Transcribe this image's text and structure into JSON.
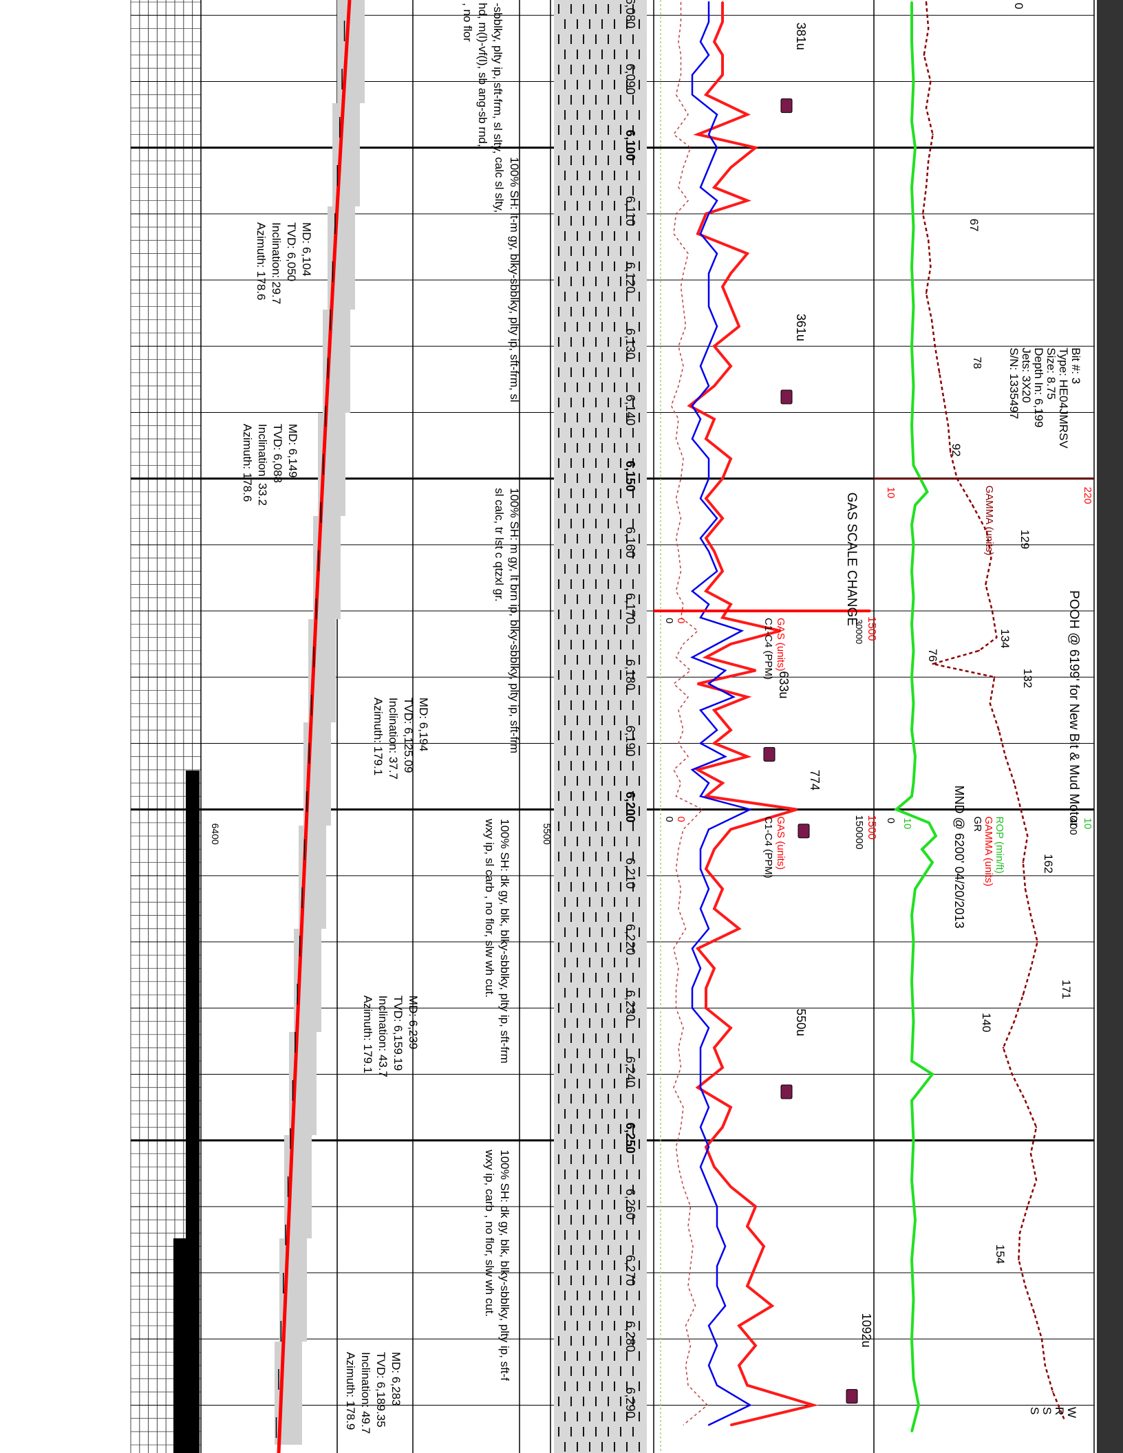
{
  "chart_data": {
    "type": "line",
    "title": "",
    "orientation": "depth increases left to right; page is a rotated mud log strip",
    "depth_axis": {
      "range": [
        6077,
        6294
      ],
      "tick_labels": [
        "6,080",
        "6,090",
        "6,100",
        "6,110",
        "6,120",
        "6,130",
        "6,140",
        "6,150",
        "6,160",
        "6,170",
        "6,180",
        "6,190",
        "6,200",
        "6,210",
        "6,220",
        "6,230",
        "6,240",
        "6,250",
        "6,260",
        "6,270",
        "6,280",
        "6,290"
      ],
      "major_every": 50,
      "grid": true
    },
    "series": [
      {
        "name": "GAS (units)",
        "color": "#ff1a1a",
        "x": [
          6078,
          6081,
          6084,
          6086,
          6089,
          6092,
          6095,
          6098,
          6100,
          6103,
          6106,
          6108,
          6110,
          6113,
          6116,
          6119,
          6121,
          6124,
          6127,
          6130,
          6133,
          6136,
          6139,
          6141,
          6144,
          6147,
          6150,
          6153,
          6156,
          6159,
          6161,
          6164,
          6167,
          6169,
          6171,
          6173,
          6175,
          6177,
          6179,
          6181,
          6183,
          6185,
          6188,
          6190,
          6192,
          6194,
          6196,
          6198,
          6200,
          6203,
          6206,
          6209,
          6212,
          6215,
          6218,
          6221,
          6224,
          6227,
          6230,
          6233,
          6236,
          6239,
          6242,
          6245,
          6248,
          6251,
          6254,
          6257,
          6260,
          6263,
          6266,
          6269,
          6272,
          6275,
          6278,
          6281,
          6284,
          6287,
          6290,
          6293
        ],
        "values": [
          5,
          5,
          4,
          5,
          5,
          3,
          8,
          2,
          9,
          6,
          4,
          8,
          3,
          2,
          8,
          6,
          5,
          6,
          7,
          4,
          6,
          4,
          1,
          4,
          3,
          6,
          5,
          3,
          5,
          3,
          4,
          5,
          3,
          6,
          5,
          12,
          6,
          3,
          9,
          2,
          8,
          4,
          6,
          4,
          8,
          2,
          5,
          3,
          14,
          6,
          4,
          3,
          5,
          4,
          7,
          2,
          4,
          3,
          3,
          6,
          4,
          5,
          2,
          6,
          5,
          3,
          4,
          6,
          9,
          8,
          10,
          9,
          8,
          11,
          7,
          9,
          7,
          8,
          16,
          6
        ]
      },
      {
        "name": "C1-C4 (PPM)",
        "color": "#0000ee",
        "x": [
          6078,
          6081,
          6084,
          6086,
          6089,
          6092,
          6095,
          6098,
          6100,
          6103,
          6106,
          6108,
          6110,
          6113,
          6116,
          6119,
          6121,
          6124,
          6127,
          6130,
          6133,
          6136,
          6139,
          6141,
          6144,
          6147,
          6150,
          6153,
          6156,
          6159,
          6161,
          6164,
          6167,
          6169,
          6171,
          6173,
          6175,
          6177,
          6179,
          6181,
          6183,
          6185,
          6188,
          6190,
          6192,
          6194,
          6196,
          6198,
          6200,
          6203,
          6206,
          6209,
          6212,
          6215,
          6218,
          6221,
          6224,
          6227,
          6230,
          6233,
          6236,
          6239,
          6242,
          6245,
          6248,
          6251,
          6254,
          6257,
          6260,
          6263,
          6266,
          6269,
          6272,
          6275,
          6278,
          6281,
          6284,
          6287,
          6290,
          6293
        ],
        "values": [
          4,
          4,
          3,
          4,
          2,
          2,
          5,
          4,
          5,
          4,
          3,
          5,
          4,
          3,
          5,
          4,
          4,
          4,
          5,
          4,
          3,
          4,
          2,
          3,
          2,
          4,
          4,
          3,
          5,
          3,
          4,
          5,
          2,
          4,
          3,
          8,
          5,
          2,
          6,
          4,
          7,
          3,
          5,
          3,
          6,
          2,
          4,
          3,
          9,
          4,
          3,
          3,
          4,
          3,
          4,
          2,
          3,
          2,
          2,
          4,
          3,
          3,
          3,
          4,
          3,
          4,
          3,
          4,
          5,
          5,
          6,
          5,
          5,
          6,
          4,
          5,
          4,
          5,
          9,
          4
        ],
        "style": "solid"
      },
      {
        "name": "ROP (min/ft)",
        "color": "#22e022",
        "x": [
          6078,
          6084,
          6090,
          6096,
          6100,
          6106,
          6112,
          6118,
          6124,
          6130,
          6136,
          6142,
          6148,
          6150,
          6152,
          6154,
          6157,
          6160,
          6164,
          6168,
          6172,
          6176,
          6180,
          6184,
          6188,
          6192,
          6196,
          6198,
          6200,
          6202,
          6204,
          6206,
          6208,
          6212,
          6216,
          6220,
          6226,
          6232,
          6238,
          6240,
          6244,
          6250,
          6256,
          6262,
          6268,
          6274,
          6280,
          6286,
          6290,
          6294
        ],
        "values": [
          1.0,
          1.0,
          1.1,
          1.0,
          1.2,
          1.0,
          1.1,
          1.0,
          1.1,
          1.0,
          1.1,
          1.0,
          1.1,
          1.5,
          1.9,
          1.2,
          1.0,
          1.1,
          1.0,
          1.1,
          1.0,
          1.1,
          1.0,
          1.1,
          1.0,
          1.2,
          1.1,
          1.0,
          0.1,
          2.0,
          2.4,
          1.6,
          2.2,
          1.2,
          1.0,
          1.1,
          1.0,
          1.1,
          1.0,
          2.2,
          1.0,
          1.1,
          1.0,
          1.2,
          1.0,
          1.1,
          1.0,
          1.1,
          1.4,
          1.0
        ]
      },
      {
        "name": "GAMMA (units)",
        "color": "#8b0000",
        "style": "dashed",
        "x": [
          6078,
          6082,
          6086,
          6090,
          6094,
          6098,
          6102,
          6106,
          6110,
          6114,
          6118,
          6122,
          6126,
          6130,
          6134,
          6138,
          6142,
          6146,
          6150,
          6154,
          6158,
          6162,
          6166,
          6170,
          6174,
          6176,
          6178,
          6180,
          6184,
          6188,
          6192,
          6196,
          6200,
          6204,
          6208,
          6212,
          6216,
          6220,
          6224,
          6228,
          6232,
          6236,
          6240,
          6244,
          6248,
          6252,
          6256,
          6260,
          6264,
          6268,
          6272,
          6276,
          6280,
          6284,
          6288,
          6292
        ],
        "values": [
          70,
          72,
          68,
          74,
          70,
          76,
          72,
          70,
          67,
          72,
          74,
          70,
          75,
          78,
          82,
          86,
          90,
          92,
          98,
          112,
          125,
          129,
          124,
          130,
          134,
          118,
          76,
          132,
          128,
          136,
          142,
          150,
          156,
          162,
          158,
          160,
          165,
          171,
          165,
          158,
          150,
          140,
          148,
          160,
          170,
          165,
          170,
          162,
          155,
          154,
          160,
          168,
          175,
          178,
          185,
          195
        ]
      }
    ],
    "scales": {
      "gas_upper": {
        "label": "GAS (units)",
        "min": "0",
        "max": "1500"
      },
      "c1c4_upper": {
        "label": "C1-C4 (PPM)",
        "min": "0",
        "max": "150000"
      },
      "c1c4_upper_old": {
        "max": "30000"
      },
      "gamma_upper": {
        "label": "GAMMA (units)",
        "min": "10",
        "max": "220"
      },
      "gamma_lower": {
        "label": "GAMMA (units)",
        "min": "0",
        "max": "400"
      },
      "rop": {
        "label": "ROP (min/ft)",
        "min": "10",
        "max": "10"
      }
    },
    "annotations": {
      "gas_peaks": [
        {
          "depth": 6092,
          "label": "381u"
        },
        {
          "depth": 6136,
          "label": "361u"
        },
        {
          "depth": 6190,
          "label": "633u"
        },
        {
          "depth": 6241,
          "label": "550u"
        },
        {
          "depth": 6287,
          "label": "1092u"
        }
      ],
      "gas_scale_change": "GAS SCALE CHANGE",
      "gas_774": "774",
      "gamma_values": [
        {
          "depth": 6113,
          "label": "67"
        },
        {
          "depth": 6147,
          "label": "92"
        },
        {
          "depth": 6160,
          "label": "129"
        },
        {
          "depth": 6175,
          "label": "134"
        },
        {
          "depth": 6178,
          "label": "76"
        },
        {
          "depth": 6181,
          "label": "132"
        },
        {
          "depth": 6209,
          "label": "162"
        },
        {
          "depth": 6228,
          "label": "171"
        },
        {
          "depth": 6233,
          "label": "140"
        },
        {
          "depth": 6268,
          "label": "154"
        }
      ],
      "gamma_78": "78",
      "bit_info": [
        "Bit #: 3",
        "Type: HE04JMRSV",
        "Size: 8.75",
        "Depth In: 6,199",
        "Jets: 3X20",
        "S/N: 1335497"
      ],
      "pooh": "POOH @ 6199' for New Bit & Mud Motor",
      "mnd": "MND @ 6200' 04/20/2013",
      "gr": "GR",
      "survey": [
        {
          "md": "MD: 6,104",
          "tvd": "TVD: 6,050",
          "inc": "Inclination: 29.7",
          "azi": "Azimuth: 178.6"
        },
        {
          "md": "MD: 6,149",
          "tvd": "TVD: 6,088",
          "inc": "Inclination: 33.2",
          "azi": "Azimuth: 178.6"
        },
        {
          "md": "MD: 6,194",
          "tvd": "TVD: 6,125.09",
          "inc": "Inclination: 37.7",
          "azi": "Azimuth: 179.1"
        },
        {
          "md": "MD: 6,239",
          "tvd": "TVD: 6,159.19",
          "inc": "Inclination: 43.7",
          "azi": "Azimuth: 179.1"
        },
        {
          "md": "MD: 6,283",
          "tvd": "TVD: 6,189.35",
          "inc": "Inclination: 49.7",
          "azi": "Azimuth: 178.9"
        }
      ],
      "lithology": [
        {
          "lines": [
            "-sbblky, plty ip, sft-frm, sl slty,",
            "hd, m(l)-vf(l), sb ang-sb rnd,",
            ", no flor"
          ]
        },
        {
          "lines": [
            "100% SH: lt-m gy, blky-sbblky, plty ip, sft-frm, sl",
            "calc sl slty,"
          ]
        },
        {
          "lines": [
            "100% SH: m gy, lt brn ip, blky-sbblky, plty ip, sft-frm",
            "sl calc, tr lst c qtzxl gr."
          ]
        },
        {
          "lines": [
            "100% SH: dk gy, blk, blky-sbblky, plty ip, sft-frm",
            "wxy ip, sl carb , no flor, slw wh cut."
          ]
        },
        {
          "lines": [
            "100% SH: dk gy, blk, blky-sbblky, plty ip, sft-f",
            "wxy ip, carb , no flor, slw wh cut."
          ]
        }
      ],
      "track_labels": {
        "mid_5500": "5500",
        "left_6400": "6400"
      },
      "edge_letters": [
        "W",
        "R",
        "S",
        "S"
      ],
      "edge_zero": "0"
    }
  }
}
